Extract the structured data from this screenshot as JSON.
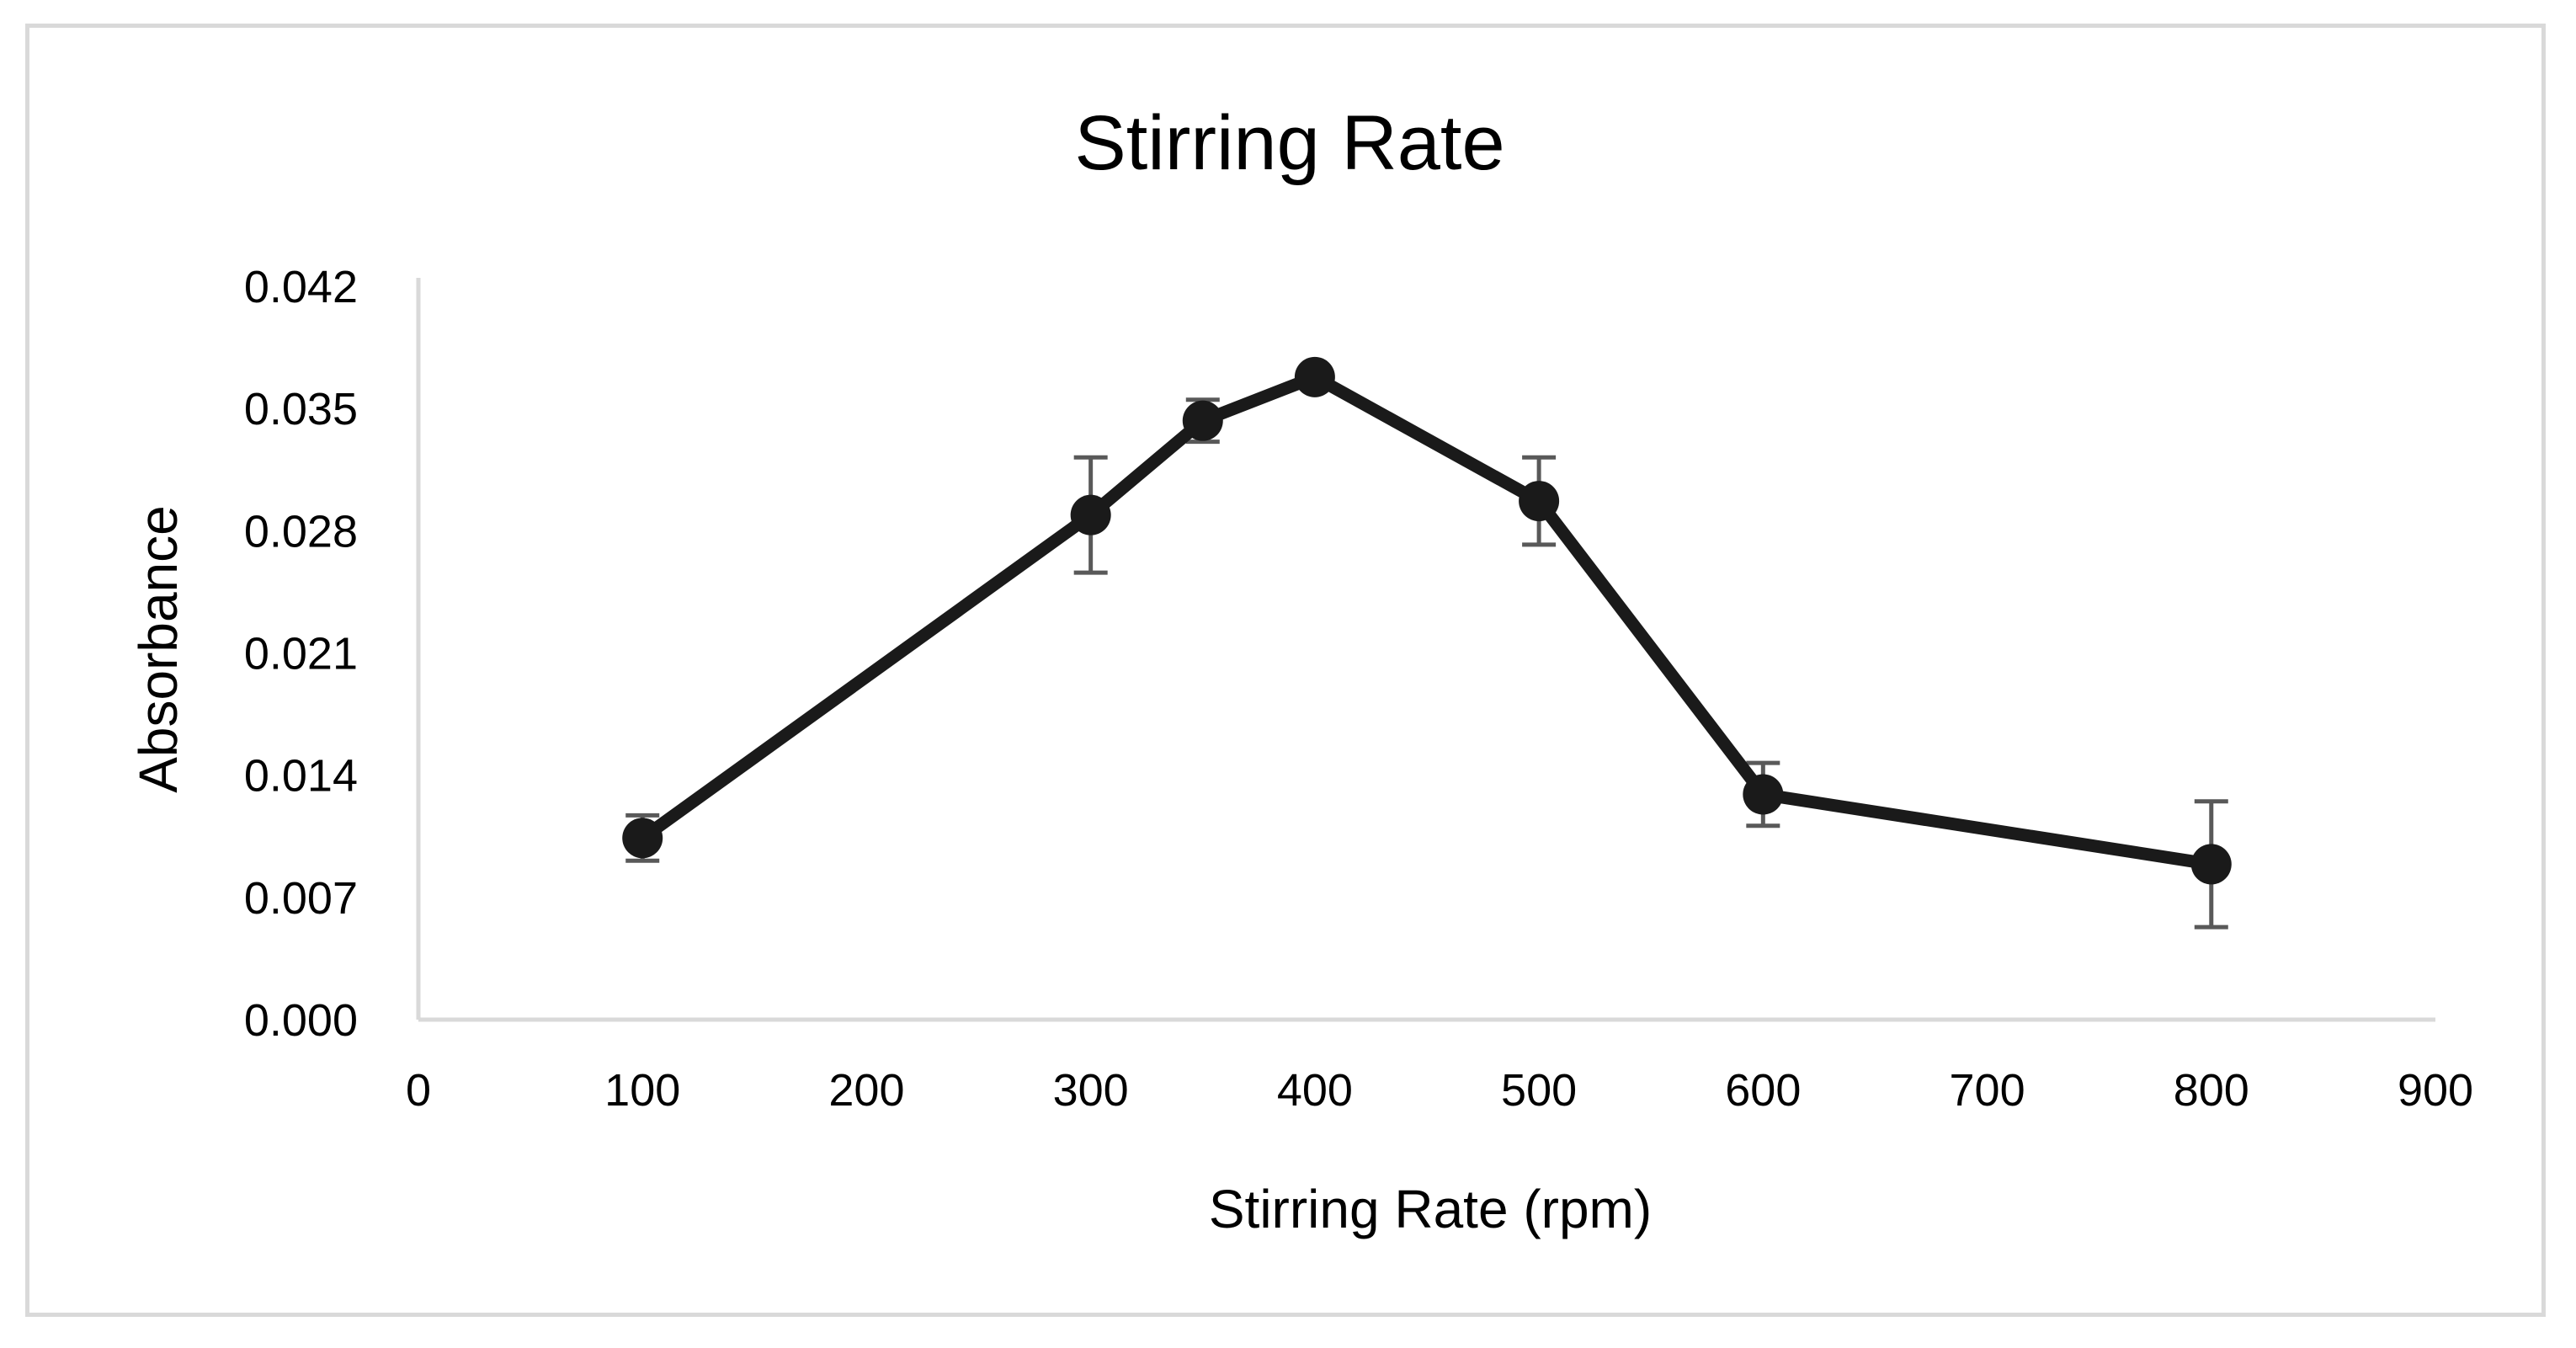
{
  "chart_data": {
    "type": "line",
    "title": "Stirring Rate",
    "xlabel": "Stirring Rate (rpm)",
    "ylabel": "Absorbance",
    "xlim": [
      0,
      900
    ],
    "ylim": [
      0,
      0.042
    ],
    "xticks": [
      0,
      100,
      200,
      300,
      400,
      500,
      600,
      700,
      800,
      900
    ],
    "xtick_labels": [
      "0",
      "100",
      "200",
      "300",
      "400",
      "500",
      "600",
      "700",
      "800",
      "900"
    ],
    "yticks": [
      0,
      0.007,
      0.014,
      0.021,
      0.028,
      0.035,
      0.042
    ],
    "ytick_labels": [
      "0.000",
      "0.007",
      "0.014",
      "0.021",
      "0.028",
      "0.035",
      "0.042"
    ],
    "grid": false,
    "legend": "none",
    "series": [
      {
        "name": "Absorbance",
        "color": "#1a1a1a",
        "errorbar_color": "#595959",
        "x": [
          100,
          300,
          350,
          400,
          500,
          600,
          800
        ],
        "y": [
          0.0104,
          0.0289,
          0.0343,
          0.0368,
          0.0297,
          0.0129,
          0.0089
        ],
        "yerr": [
          0.0013,
          0.0033,
          0.0012,
          0.0005,
          0.0025,
          0.0018,
          0.0036
        ]
      }
    ]
  }
}
